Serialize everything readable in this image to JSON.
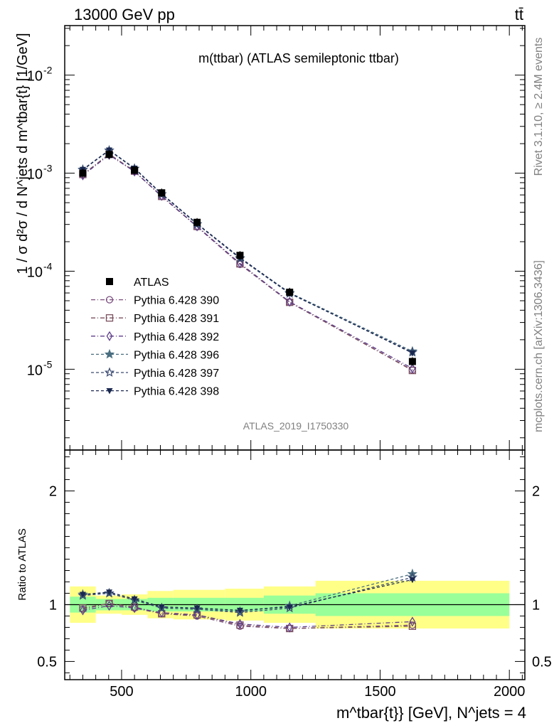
{
  "header": {
    "left": "13000 GeV pp",
    "right": "tt̄"
  },
  "side": {
    "rivet": "Rivet 3.1.10, ≥ 2.4M events",
    "mcplots": "mcplots.cern.ch [arXiv:1306.3436]"
  },
  "chart_data": {
    "type": "line",
    "title": "m(ttbar) (ATLAS semileptonic ttbar)",
    "watermark": "ATLAS_2019_I1750330",
    "ylabel": "1 / σ d²σ / d N^jets d m^tbar{t} [1/GeV]",
    "xlabel": "m^tbar{t}} [GeV], N^jets = 4",
    "ratio_ylabel": "Ratio to ATLAS",
    "xlim": [
      280,
      2060
    ],
    "ylim_log": [
      1.5e-06,
      0.032
    ],
    "ratio_ylim": [
      0.34,
      2.36
    ],
    "y_ticks": [
      {
        "value": 0.01,
        "base": "10",
        "exp": "-2"
      },
      {
        "value": 0.001,
        "base": "10",
        "exp": "-3"
      },
      {
        "value": 0.0001,
        "base": "10",
        "exp": "-4"
      },
      {
        "value": 1e-05,
        "base": "10",
        "exp": "-5"
      }
    ],
    "x_ticks": [
      {
        "value": 500,
        "label": "500"
      },
      {
        "value": 1000,
        "label": "1000"
      },
      {
        "value": 1500,
        "label": "1500"
      },
      {
        "value": 2000,
        "label": "2000"
      }
    ],
    "ratio_ticks": [
      {
        "value": 0.5,
        "label": "0.5"
      },
      {
        "value": 1,
        "label": "1"
      },
      {
        "value": 2,
        "label": "2"
      }
    ],
    "bins": [
      {
        "lo": 300,
        "hi": 400,
        "x": 350,
        "data": 0.001,
        "b1": [
          0.93,
          1.07
        ],
        "b2": [
          0.84,
          1.16
        ]
      },
      {
        "lo": 400,
        "hi": 500,
        "x": 452,
        "data": 0.00155,
        "b1": [
          0.95,
          1.05
        ],
        "b2": [
          0.92,
          1.08
        ]
      },
      {
        "lo": 500,
        "hi": 600,
        "x": 550,
        "data": 0.00107,
        "b1": [
          0.95,
          1.05
        ],
        "b2": [
          0.91,
          1.09
        ]
      },
      {
        "lo": 600,
        "hi": 700,
        "x": 655,
        "data": 0.00063,
        "b1": [
          0.94,
          1.06
        ],
        "b2": [
          0.88,
          1.12
        ]
      },
      {
        "lo": 700,
        "hi": 900,
        "x": 792,
        "data": 0.000315,
        "b1": [
          0.94,
          1.06
        ],
        "b2": [
          0.87,
          1.13
        ]
      },
      {
        "lo": 900,
        "hi": 1050,
        "x": 958,
        "data": 0.000145,
        "b1": [
          0.94,
          1.06
        ],
        "b2": [
          0.86,
          1.14
        ]
      },
      {
        "lo": 1050,
        "hi": 1250,
        "x": 1150,
        "data": 6.1e-05,
        "b1": [
          0.92,
          1.08
        ],
        "b2": [
          0.84,
          1.16
        ]
      },
      {
        "lo": 1250,
        "hi": 2000,
        "x": 1625,
        "data": 1.2e-05,
        "b1": [
          0.9,
          1.1
        ],
        "b2": [
          0.79,
          1.21
        ]
      }
    ],
    "series": [
      {
        "name": "Pythia 6.428 390",
        "color": "#7a4e7e",
        "dash": "6,3,1,3",
        "marker": "circle",
        "ratio": [
          0.96,
          1.01,
          0.97,
          0.92,
          0.9,
          0.81,
          0.79,
          0.82
        ]
      },
      {
        "name": "Pythia 6.428 391",
        "color": "#7a4f5e",
        "dash": "6,3,1,3",
        "marker": "square",
        "ratio": [
          0.97,
          1.01,
          0.98,
          0.92,
          0.91,
          0.82,
          0.79,
          0.81
        ]
      },
      {
        "name": "Pythia 6.428 392",
        "color": "#5e3f8a",
        "dash": "6,3,1,3",
        "marker": "diamond",
        "ratio": [
          0.95,
          0.99,
          0.97,
          0.93,
          0.91,
          0.83,
          0.8,
          0.85
        ]
      },
      {
        "name": "Pythia 6.428 396",
        "color": "#4a6e80",
        "dash": "4,3",
        "marker": "star-filled",
        "ratio": [
          1.09,
          1.1,
          1.04,
          0.97,
          0.96,
          0.94,
          0.99,
          1.27
        ]
      },
      {
        "name": "Pythia 6.428 397",
        "color": "#3a4a70",
        "dash": "4,3",
        "marker": "star-open",
        "ratio": [
          1.08,
          1.1,
          1.04,
          0.97,
          0.96,
          0.93,
          0.97,
          1.24
        ]
      },
      {
        "name": "Pythia 6.428 398",
        "color": "#1a2850",
        "dash": "4,3",
        "marker": "triangle-down",
        "ratio": [
          1.09,
          1.11,
          1.05,
          0.98,
          0.97,
          0.95,
          0.98,
          1.22
        ]
      }
    ],
    "data_series": {
      "name": "ATLAS",
      "marker": "square-filled"
    }
  }
}
